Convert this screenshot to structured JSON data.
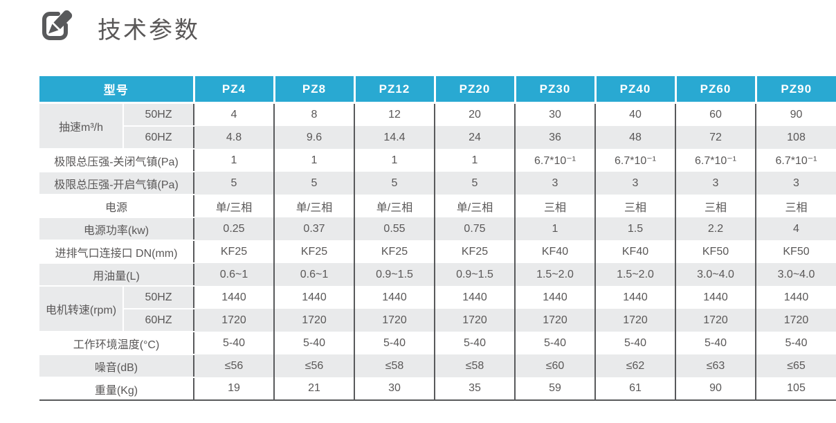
{
  "page": {
    "title": "技术参数",
    "accent_color": "#29a9d2",
    "row_alt_color": "#e9eaeb",
    "border_color": "#58595b",
    "text_color": "#595757"
  },
  "chart_data": {
    "type": "table",
    "title": "技术参数",
    "header_label": "型号",
    "models": [
      "PZ4",
      "PZ8",
      "PZ12",
      "PZ20",
      "PZ30",
      "PZ40",
      "PZ60",
      "PZ90"
    ],
    "rows": [
      {
        "label": "抽速m³/h",
        "sublabels": [
          "50HZ",
          "60HZ"
        ],
        "values": [
          [
            "4",
            "8",
            "12",
            "20",
            "30",
            "40",
            "60",
            "90"
          ],
          [
            "4.8",
            "9.6",
            "14.4",
            "24",
            "36",
            "48",
            "72",
            "108"
          ]
        ]
      },
      {
        "label": "极限总压强-关闭气镇(Pa)",
        "values": [
          "1",
          "1",
          "1",
          "1",
          "6.7*10⁻¹",
          "6.7*10⁻¹",
          "6.7*10⁻¹",
          "6.7*10⁻¹"
        ]
      },
      {
        "label": "极限总压强-开启气镇(Pa)",
        "values": [
          "5",
          "5",
          "5",
          "5",
          "3",
          "3",
          "3",
          "3"
        ]
      },
      {
        "label": "电源",
        "values": [
          "单/三相",
          "单/三相",
          "单/三相",
          "单/三相",
          "三相",
          "三相",
          "三相",
          "三相"
        ]
      },
      {
        "label": "电源功率(kw)",
        "values": [
          "0.25",
          "0.37",
          "0.55",
          "0.75",
          "1",
          "1.5",
          "2.2",
          "4"
        ]
      },
      {
        "label": "进排气口连接口 DN(mm)",
        "values": [
          "KF25",
          "KF25",
          "KF25",
          "KF25",
          "KF40",
          "KF40",
          "KF50",
          "KF50"
        ]
      },
      {
        "label": "用油量(L)",
        "values": [
          "0.6~1",
          "0.6~1",
          "0.9~1.5",
          "0.9~1.5",
          "1.5~2.0",
          "1.5~2.0",
          "3.0~4.0",
          "3.0~4.0"
        ]
      },
      {
        "label": "电机转速(rpm)",
        "sublabels": [
          "50HZ",
          "60HZ"
        ],
        "values": [
          [
            "1440",
            "1440",
            "1440",
            "1440",
            "1440",
            "1440",
            "1440",
            "1440"
          ],
          [
            "1720",
            "1720",
            "1720",
            "1720",
            "1720",
            "1720",
            "1720",
            "1720"
          ]
        ]
      },
      {
        "label": "工作环境温度(°C)",
        "values": [
          "5-40",
          "5-40",
          "5-40",
          "5-40",
          "5-40",
          "5-40",
          "5-40",
          "5-40"
        ]
      },
      {
        "label": "噪音(dB)",
        "values": [
          "≤56",
          "≤56",
          "≤58",
          "≤58",
          "≤60",
          "≤62",
          "≤63",
          "≤65"
        ]
      },
      {
        "label": "重量(Kg)",
        "values": [
          "19",
          "21",
          "30",
          "35",
          "59",
          "61",
          "90",
          "105"
        ]
      }
    ]
  }
}
